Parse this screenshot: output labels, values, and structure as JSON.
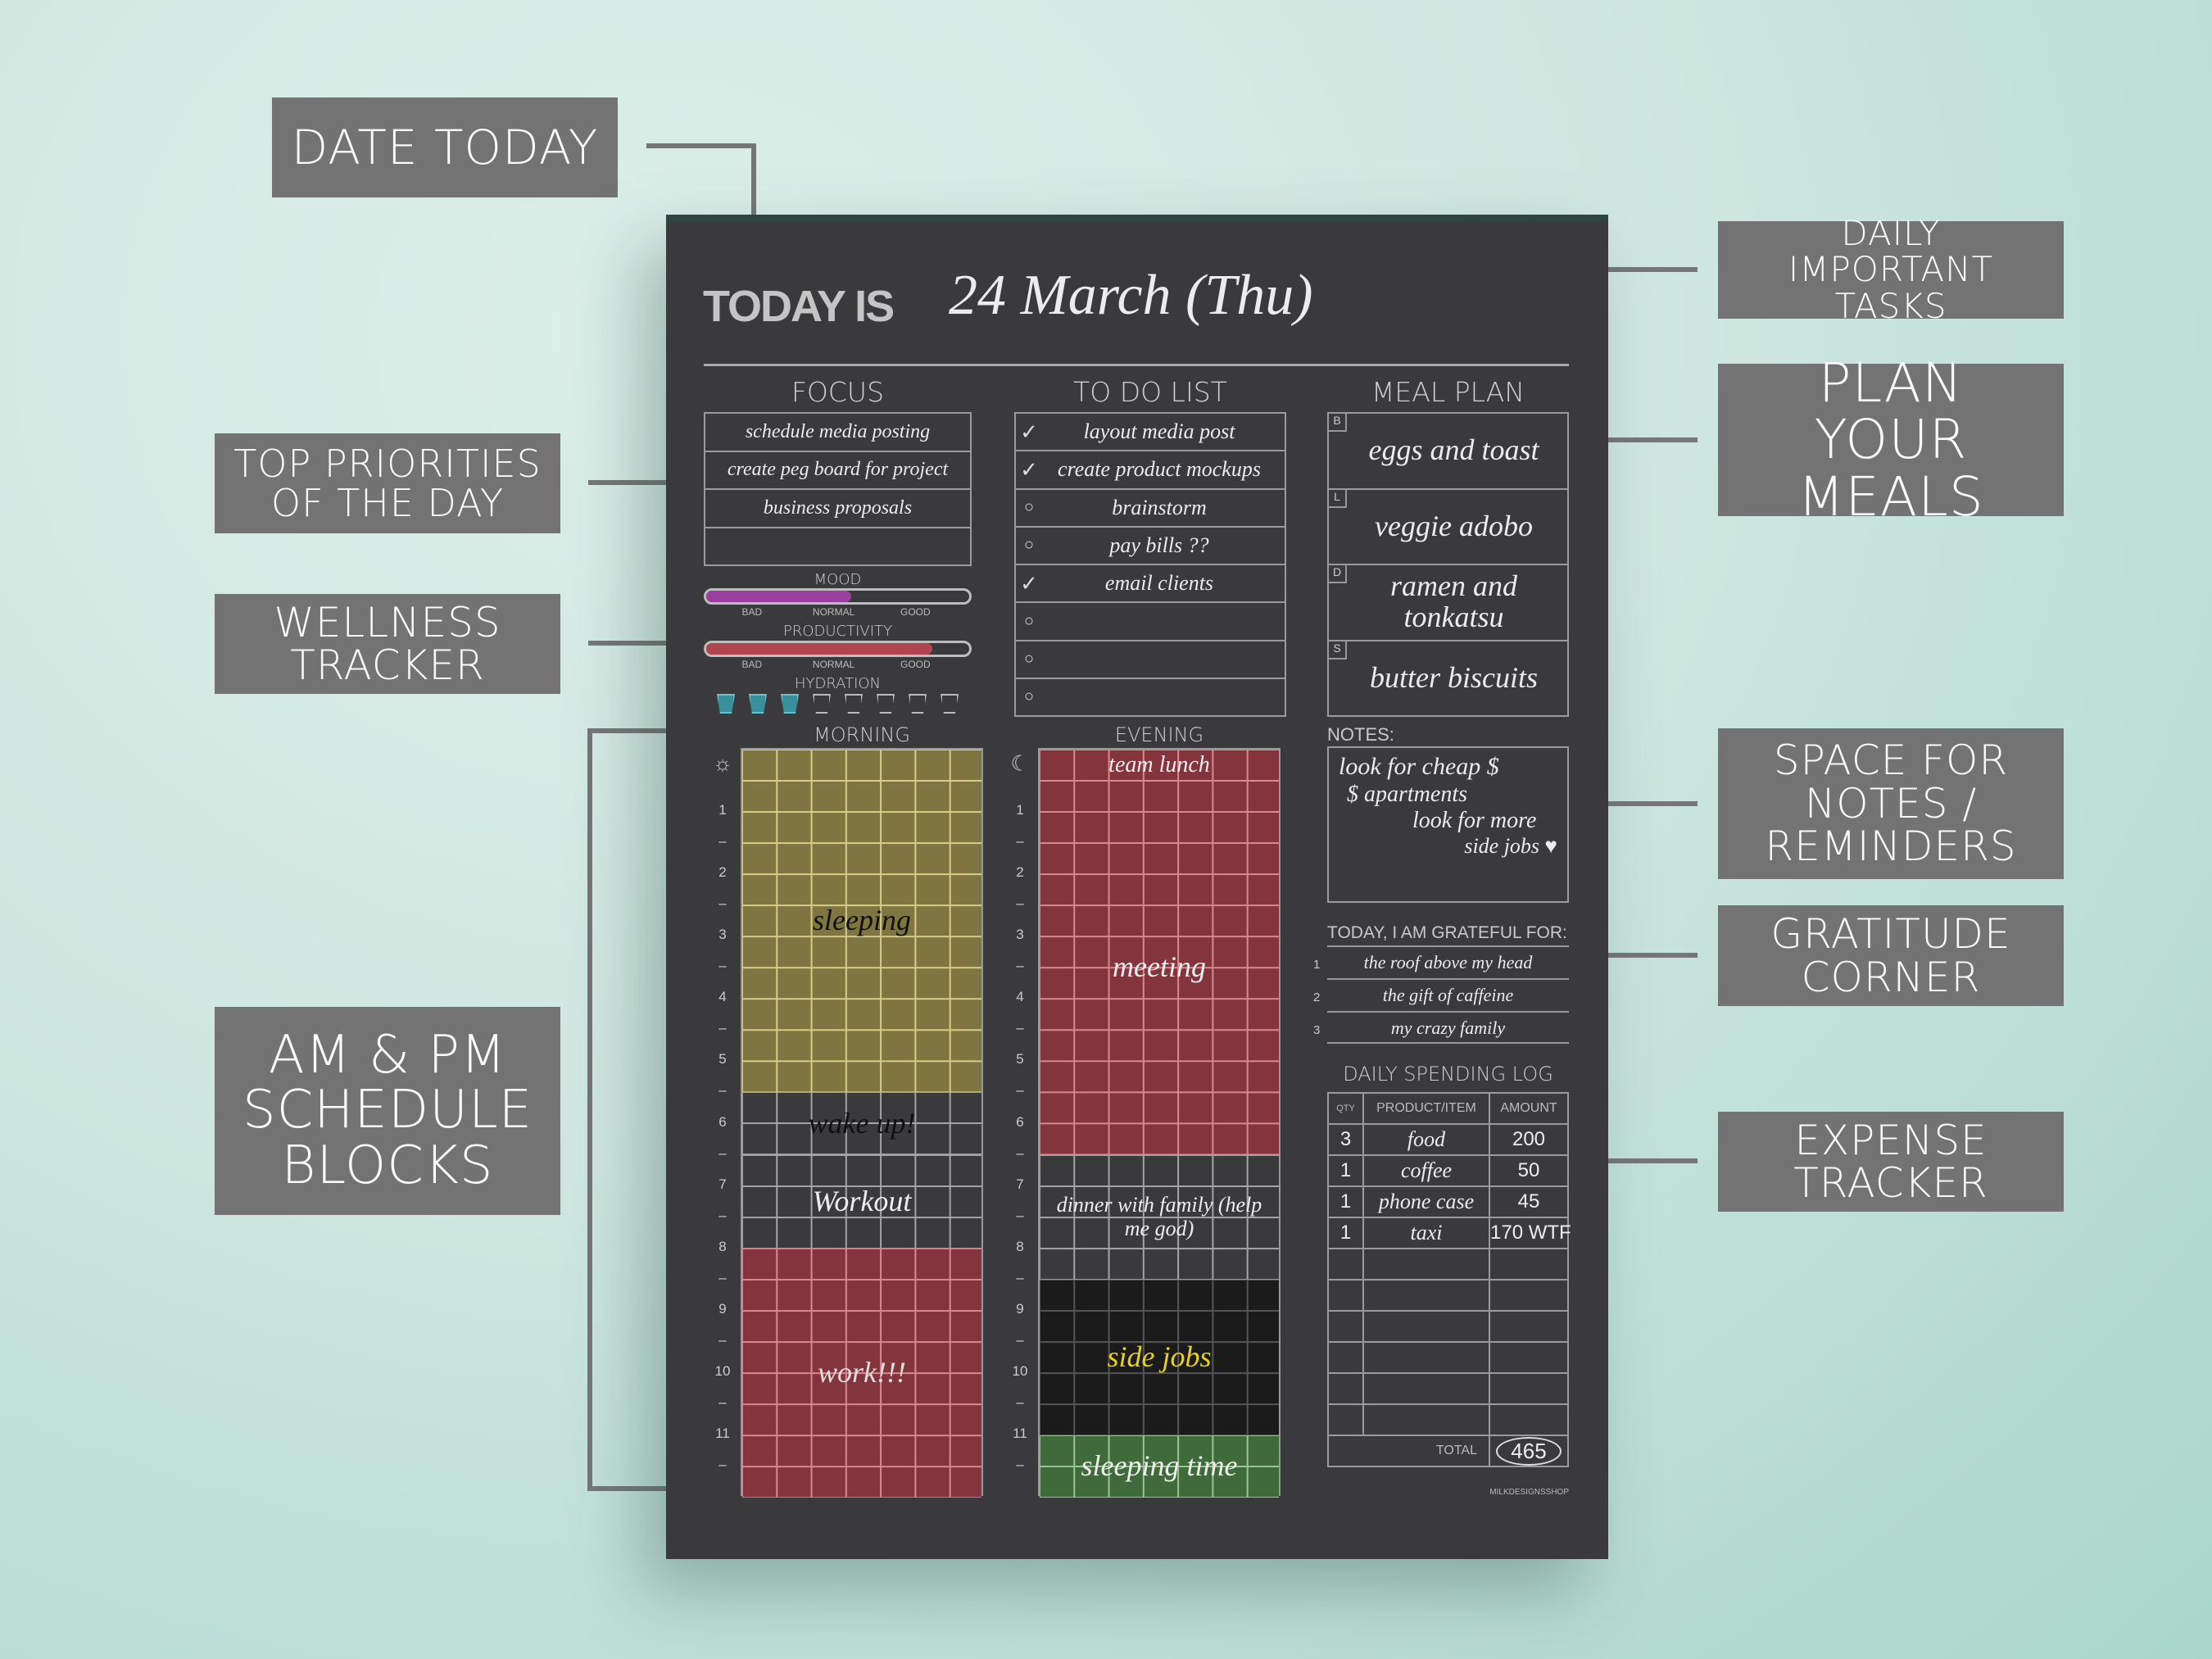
{
  "callouts": {
    "date_today": "DATE TODAY",
    "daily_tasks": "DAILY IMPORTANT TASKS",
    "plan_meals": "PLAN YOUR MEALS",
    "notes": "SPACE FOR NOTES / REMINDERS",
    "gratitude": "GRATITUDE CORNER",
    "expense": "EXPENSE TRACKER",
    "priorities": "TOP PRIORITIES OF THE DAY",
    "wellness": "WELLNESS TRACKER",
    "schedule": "AM & PM SCHEDULE BLOCKS"
  },
  "header": {
    "prefix": "TODAY IS",
    "date": "24 March (Thu)"
  },
  "focus": {
    "title": "FOCUS",
    "items": [
      "schedule media posting",
      "create peg board for project",
      "business proposals",
      ""
    ]
  },
  "todo": {
    "title": "TO DO LIST",
    "items": [
      {
        "text": "layout media post",
        "done": true
      },
      {
        "text": "create product mockups",
        "done": true
      },
      {
        "text": "brainstorm",
        "done": false
      },
      {
        "text": "pay bills ??",
        "done": false
      },
      {
        "text": "email clients",
        "done": true
      },
      {
        "text": "",
        "done": false
      },
      {
        "text": "",
        "done": false
      },
      {
        "text": "",
        "done": false
      }
    ]
  },
  "meals": {
    "title": "MEAL PLAN",
    "items": [
      {
        "tag": "B",
        "text": "eggs and toast"
      },
      {
        "tag": "L",
        "text": "veggie adobo"
      },
      {
        "tag": "D",
        "text": "ramen and tonkatsu"
      },
      {
        "tag": "S",
        "text": "butter biscuits"
      }
    ]
  },
  "wellness": {
    "mood": {
      "label": "MOOD",
      "level": 0.55,
      "color": "#9a3fa0"
    },
    "productivity": {
      "label": "PRODUCTIVITY",
      "level": 0.86,
      "color": "#b04550"
    },
    "scale": [
      "BAD",
      "NORMAL",
      "GOOD"
    ],
    "hydration": {
      "label": "HYDRATION",
      "filled": 3,
      "total": 8,
      "color": "#3a8f9c"
    }
  },
  "schedule": {
    "hour_labels": [
      "1",
      "2",
      "3",
      "4",
      "5",
      "6",
      "7",
      "8",
      "9",
      "10",
      "11"
    ],
    "morning": {
      "title": "MORNING",
      "icon": "sun-icon",
      "blocks": [
        {
          "start": 0,
          "end": 5.5,
          "label": "sleeping",
          "color": "#7f7541",
          "line": "#d6cd86",
          "text": "#111111"
        },
        {
          "start": 5.5,
          "end": 6.5,
          "label": "wake up!",
          "color": "#3a3a3c",
          "line": "#a5a5a5",
          "text": "#111111"
        },
        {
          "start": 6.5,
          "end": 8,
          "label": "Workout",
          "color": "#3a3a3c",
          "line": "#a5a5a5",
          "text": "#eeeeee"
        },
        {
          "start": 8,
          "end": 12,
          "label": "work!!!",
          "color": "#84343c",
          "line": "#d98890",
          "text": "#dddddd"
        }
      ]
    },
    "evening": {
      "title": "EVENING",
      "icon": "moon-icon",
      "blocks": [
        {
          "start": 0,
          "end": 0.5,
          "label": "team lunch",
          "color": "#84343c",
          "line": "#d98890",
          "text": "#eeeeee"
        },
        {
          "start": 0.5,
          "end": 6.5,
          "label": "meeting",
          "color": "#84343c",
          "line": "#d98890",
          "text": "#eeeeee"
        },
        {
          "start": 6.5,
          "end": 8.5,
          "label": "dinner with family (help me god)",
          "color": "#3a3a3c",
          "line": "#a5a5a5",
          "text": "#eeeeee"
        },
        {
          "start": 8.5,
          "end": 11,
          "label": "side jobs",
          "color": "#1b1b1c",
          "line": "#555555",
          "text": "#e6d21c"
        },
        {
          "start": 11,
          "end": 12,
          "label": "sleeping time",
          "color": "#3f6a3a",
          "line": "#9cc496",
          "text": "#eeeeee"
        }
      ]
    }
  },
  "notes": {
    "title": "NOTES:",
    "lines": [
      "look for cheap $",
      "$ apartments",
      "look for more",
      "side jobs ♥"
    ]
  },
  "gratitude": {
    "title": "TODAY, I AM GRATEFUL FOR:",
    "items": [
      "the roof above my head",
      "the gift of caffeine",
      "my crazy family"
    ]
  },
  "spending": {
    "title": "DAILY SPENDING LOG",
    "headers": [
      "QTY",
      "PRODUCT/ITEM",
      "AMOUNT"
    ],
    "rows": [
      [
        "3",
        "food",
        "200"
      ],
      [
        "1",
        "coffee",
        "50"
      ],
      [
        "1",
        "phone case",
        "45"
      ],
      [
        "1",
        "taxi",
        "170 WTF"
      ],
      [
        "",
        "",
        ""
      ],
      [
        "",
        "",
        ""
      ],
      [
        "",
        "",
        ""
      ],
      [
        "",
        "",
        ""
      ],
      [
        "",
        "",
        ""
      ],
      [
        "",
        "",
        ""
      ]
    ],
    "total_label": "TOTAL",
    "total": "465"
  },
  "footer": "MILKDESIGNSSHOP"
}
